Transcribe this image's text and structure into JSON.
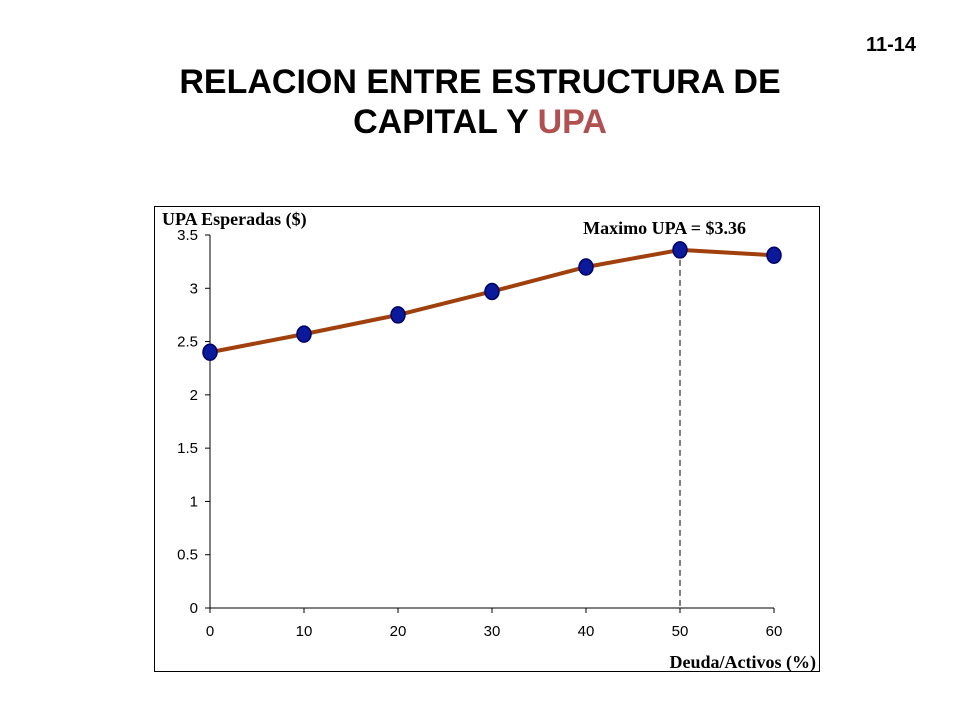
{
  "slide_number": "11-14",
  "title": {
    "line1": "RELACION ENTRE ESTRUCTURA DE",
    "line2_prefix": "CAPITAL Y ",
    "line2_accent": "UPA"
  },
  "colors": {
    "accent": "#b05050",
    "line": "#a0400d",
    "marker_fill": "#0a1a9a",
    "marker_stroke": "#000066"
  },
  "chart_data": {
    "type": "line",
    "ylabel": "UPA Esperadas ($)",
    "xlabel": "Deuda/Activos (%)",
    "x": [
      0,
      10,
      20,
      30,
      40,
      50,
      60
    ],
    "series": [
      {
        "values": [
          2.4,
          2.57,
          2.75,
          2.97,
          3.2,
          3.36,
          3.31
        ]
      }
    ],
    "xlim": [
      0,
      60
    ],
    "ylim": [
      0,
      3.5
    ],
    "xticks": [
      "0",
      "10",
      "20",
      "30",
      "40",
      "50",
      "60"
    ],
    "yticks": [
      "0",
      "0.5",
      "1",
      "1.5",
      "2",
      "2.5",
      "3",
      "3.5"
    ],
    "annotation": {
      "text": "Maximo UPA = $3.36",
      "x": 50,
      "y": 3.36
    },
    "grid": false
  }
}
